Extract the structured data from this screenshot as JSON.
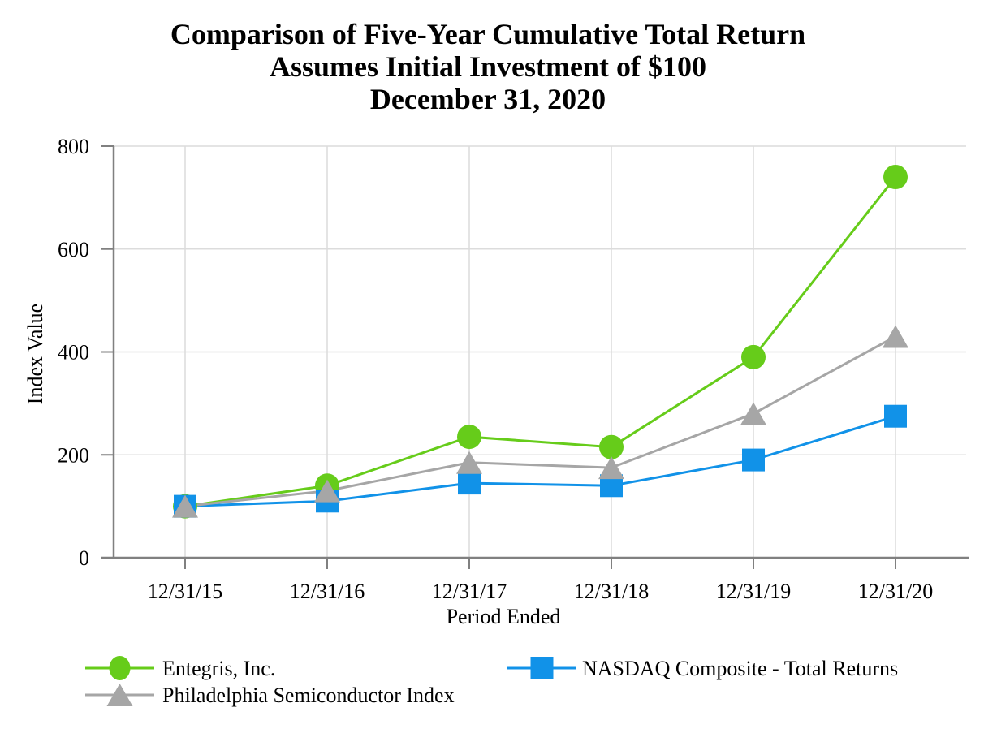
{
  "title": {
    "lines": [
      "Comparison of Five-Year Cumulative Total Return",
      "Assumes Initial Investment of $100",
      "December 31, 2020"
    ]
  },
  "chart_data": {
    "type": "line",
    "x_categories": [
      "12/31/15",
      "12/31/16",
      "12/31/17",
      "12/31/18",
      "12/31/19",
      "12/31/20"
    ],
    "xlabel": "Period Ended",
    "ylabel": "Index Value",
    "ylim": [
      0,
      800
    ],
    "yticks": [
      0,
      200,
      400,
      600,
      800
    ],
    "grid": true,
    "legend_position": "bottom",
    "initial_investment": "$100",
    "series": [
      {
        "id": "entegris",
        "name": "Entegris, Inc.",
        "marker": "circle",
        "color": "#66CC1A",
        "values": [
          100,
          140,
          235,
          215,
          390,
          740
        ]
      },
      {
        "id": "philadelphia-semiconductor-index",
        "name": "Philadelphia Semiconductor Index",
        "marker": "triangle",
        "color": "#A6A6A6",
        "values": [
          100,
          130,
          185,
          175,
          280,
          430
        ]
      },
      {
        "id": "nasdaq-composite",
        "name": "NASDAQ Composite - Total Returns",
        "marker": "square",
        "color": "#1192E8",
        "values": [
          100,
          110,
          145,
          140,
          190,
          275
        ]
      }
    ]
  },
  "colors": {
    "axis": "#808080",
    "gridline": "#DCDCDC",
    "text": "#000000",
    "background": "#FFFFFF"
  }
}
